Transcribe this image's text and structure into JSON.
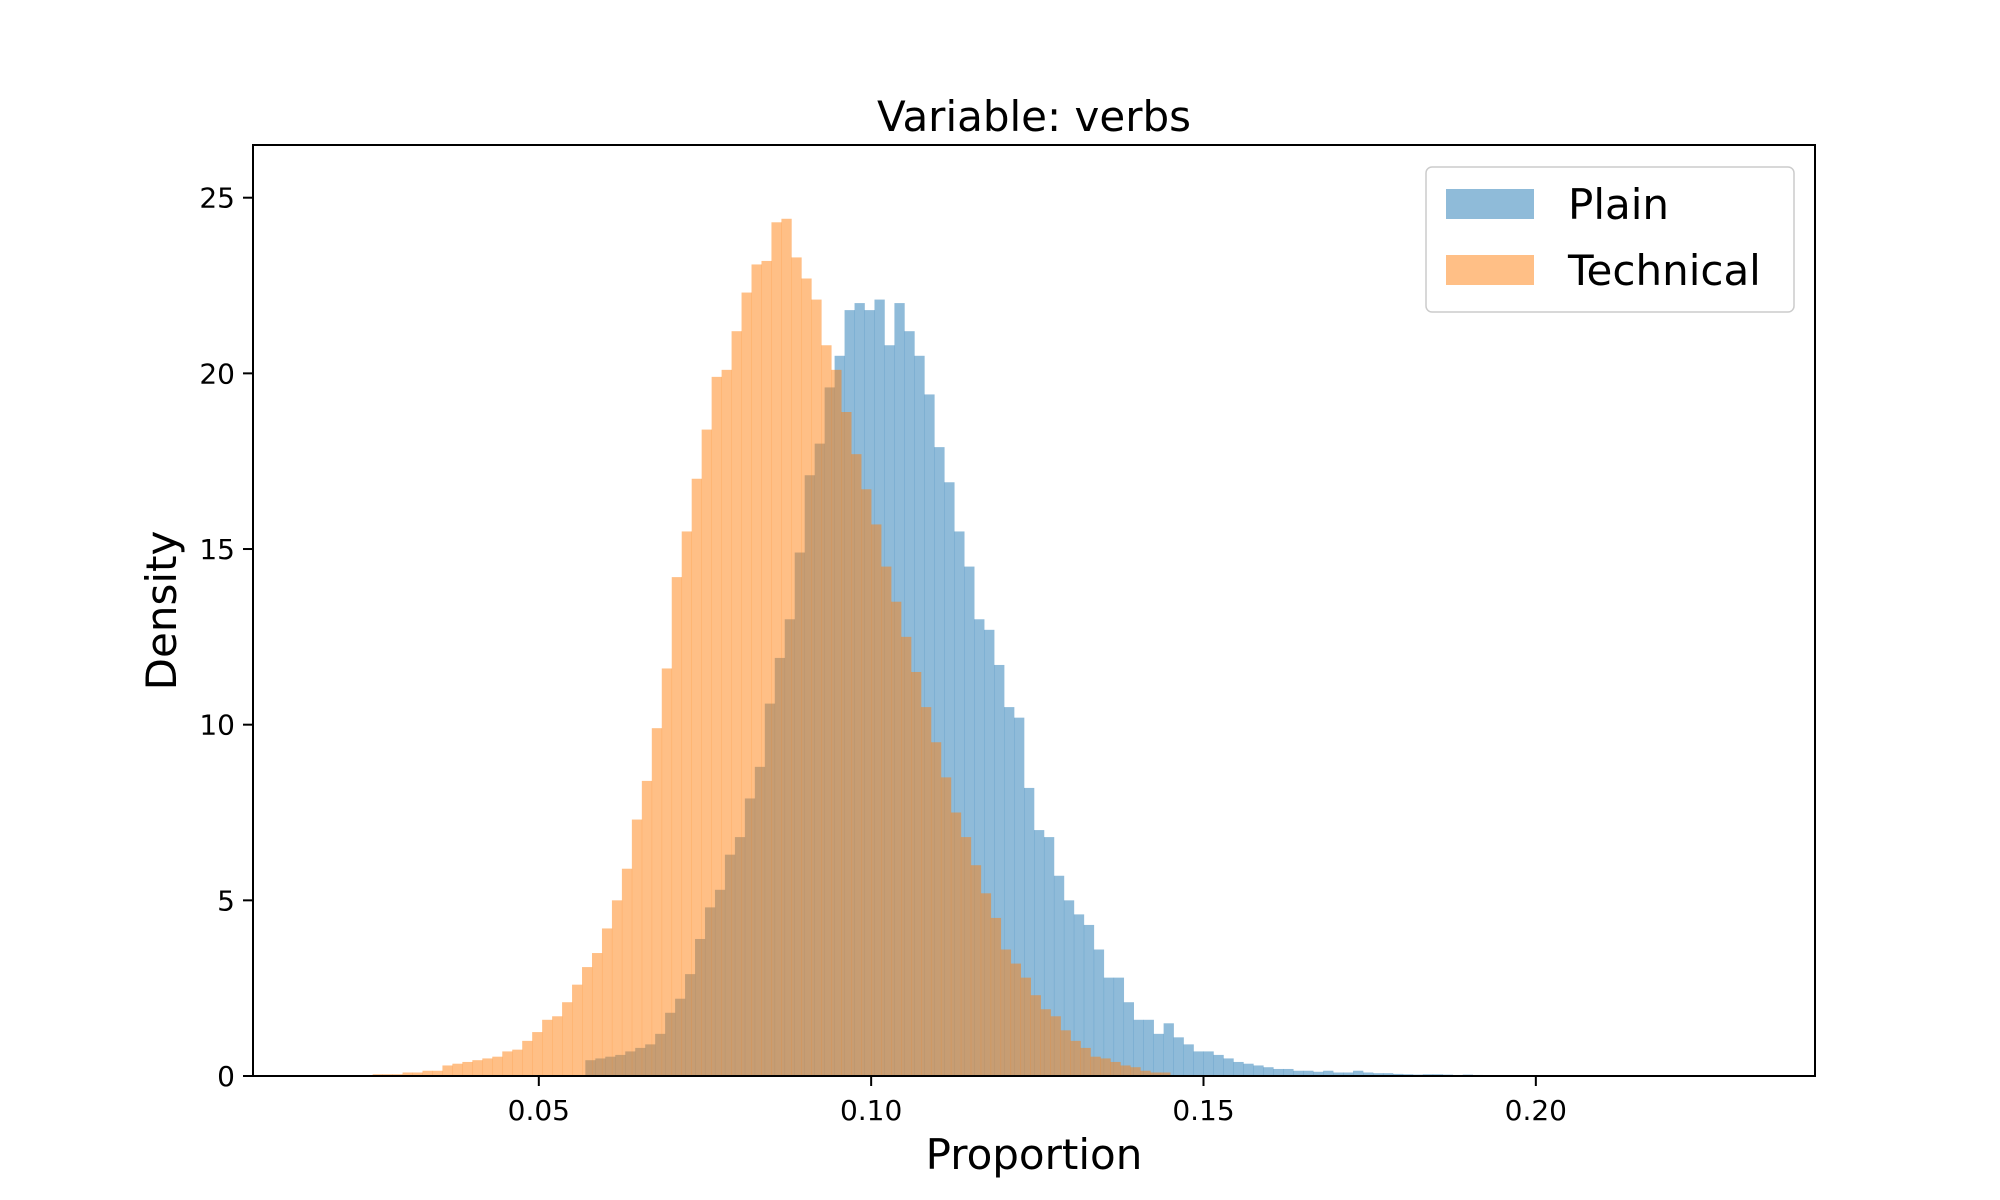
{
  "chart_data": {
    "type": "histogram",
    "title": "Variable: verbs",
    "xlabel": "Proportion",
    "ylabel": "Density",
    "xlim": [
      0.007,
      0.242
    ],
    "ylim": [
      0,
      26.5
    ],
    "xticks": [
      "0.05",
      "0.10",
      "0.15",
      "0.20"
    ],
    "yticks": [
      "0",
      "5",
      "10",
      "15",
      "20",
      "25"
    ],
    "grid": false,
    "legend_position": "top-right",
    "series": [
      {
        "name": "Plain",
        "color": "#1f77b4",
        "alpha": 0.5,
        "bin_start": 0.057,
        "bin_width": 0.0015,
        "values": [
          0.45,
          0.5,
          0.55,
          0.6,
          0.7,
          0.8,
          0.9,
          1.2,
          1.8,
          2.2,
          2.9,
          3.9,
          4.8,
          5.3,
          6.3,
          6.8,
          7.9,
          8.8,
          10.6,
          11.9,
          13.0,
          14.9,
          17.1,
          18.0,
          19.6,
          20.5,
          21.8,
          22.0,
          21.8,
          22.1,
          20.8,
          22.0,
          21.2,
          20.5,
          19.4,
          17.9,
          16.9,
          15.5,
          14.5,
          13.0,
          12.7,
          11.7,
          10.5,
          10.2,
          8.2,
          7.0,
          6.8,
          5.7,
          5.0,
          4.6,
          4.3,
          3.6,
          2.8,
          2.8,
          2.1,
          1.6,
          1.6,
          1.2,
          1.5,
          1.1,
          0.9,
          0.7,
          0.7,
          0.6,
          0.5,
          0.4,
          0.35,
          0.3,
          0.25,
          0.2,
          0.2,
          0.15,
          0.15,
          0.12,
          0.15,
          0.1,
          0.1,
          0.15,
          0.1,
          0.08,
          0.08,
          0.06,
          0.05,
          0.04,
          0.05,
          0.05,
          0.04,
          0.03,
          0.04,
          0.03,
          0.02,
          0.02,
          0.02,
          0.02,
          0.02,
          0.01,
          0.01,
          0.01,
          0.01,
          0.01,
          0.01,
          0.01,
          0.01,
          0.005
        ]
      },
      {
        "name": "Technical",
        "color": "#ff7f0e",
        "alpha": 0.5,
        "bin_start": 0.025,
        "bin_width": 0.0015,
        "values": [
          0.05,
          0.05,
          0.05,
          0.1,
          0.1,
          0.15,
          0.15,
          0.3,
          0.35,
          0.4,
          0.45,
          0.5,
          0.55,
          0.7,
          0.75,
          1.0,
          1.25,
          1.6,
          1.7,
          2.1,
          2.6,
          3.1,
          3.5,
          4.2,
          5.0,
          5.9,
          7.3,
          8.4,
          9.9,
          11.6,
          14.2,
          15.5,
          17.0,
          18.4,
          19.9,
          20.1,
          21.2,
          22.3,
          23.1,
          23.2,
          24.3,
          24.4,
          23.3,
          22.7,
          22.1,
          20.8,
          20.1,
          18.9,
          17.7,
          16.7,
          15.7,
          14.5,
          13.5,
          12.5,
          11.5,
          10.5,
          9.5,
          8.5,
          7.5,
          6.8,
          6.0,
          5.2,
          4.5,
          3.6,
          3.2,
          2.8,
          2.3,
          1.9,
          1.7,
          1.3,
          1.0,
          0.8,
          0.55,
          0.5,
          0.4,
          0.3,
          0.25,
          0.15,
          0.1,
          0.1
        ]
      }
    ]
  }
}
